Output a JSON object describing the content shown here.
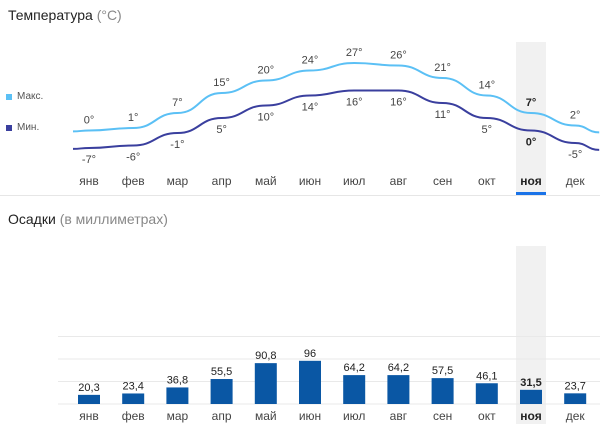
{
  "temperature": {
    "title": "Температура",
    "unit": "(°C)",
    "legend": {
      "max_label": "Макс.",
      "min_label": "Мин."
    },
    "colors": {
      "max": "#5bc0f5",
      "min": "#3a3f9e"
    }
  },
  "precipitation": {
    "title": "Осадки",
    "unit": "(в миллиметрах)",
    "bar_color": "#0a57a4"
  },
  "highlight_color": "#f1f1f1",
  "selected_underline_color": "#1a73e8",
  "chart_data": [
    {
      "type": "line",
      "title": "Температура (°C)",
      "categories": [
        "янв",
        "фев",
        "мар",
        "апр",
        "май",
        "июн",
        "июл",
        "авг",
        "сен",
        "окт",
        "ноя",
        "дек"
      ],
      "selected_index": 10,
      "series": [
        {
          "name": "Макс.",
          "values": [
            0,
            1,
            7,
            15,
            20,
            24,
            27,
            26,
            21,
            14,
            7,
            2
          ],
          "labels": [
            "0°",
            "1°",
            "7°",
            "15°",
            "20°",
            "24°",
            "27°",
            "26°",
            "21°",
            "14°",
            "7°",
            "2°"
          ]
        },
        {
          "name": "Мин.",
          "values": [
            -7,
            -6,
            -1,
            5,
            10,
            14,
            16,
            16,
            11,
            5,
            0,
            -5
          ],
          "labels": [
            "-7°",
            "-6°",
            "-1°",
            "5°",
            "10°",
            "14°",
            "16°",
            "16°",
            "11°",
            "5°",
            "0°",
            "-5°"
          ]
        }
      ],
      "legend": "left"
    },
    {
      "type": "bar",
      "title": "Осадки (в миллиметрах)",
      "categories": [
        "янв",
        "фев",
        "мар",
        "апр",
        "май",
        "июн",
        "июл",
        "авг",
        "сен",
        "окт",
        "ноя",
        "дек"
      ],
      "selected_index": 10,
      "values": [
        20.3,
        23.4,
        36.8,
        55.5,
        90.8,
        96,
        64.2,
        64.2,
        57.5,
        46.1,
        31.5,
        23.7
      ],
      "labels": [
        "20,3",
        "23,4",
        "36,8",
        "55,5",
        "90,8",
        "96",
        "64,2",
        "64,2",
        "57,5",
        "46,1",
        "31,5",
        "23,7"
      ],
      "grid": true
    }
  ]
}
